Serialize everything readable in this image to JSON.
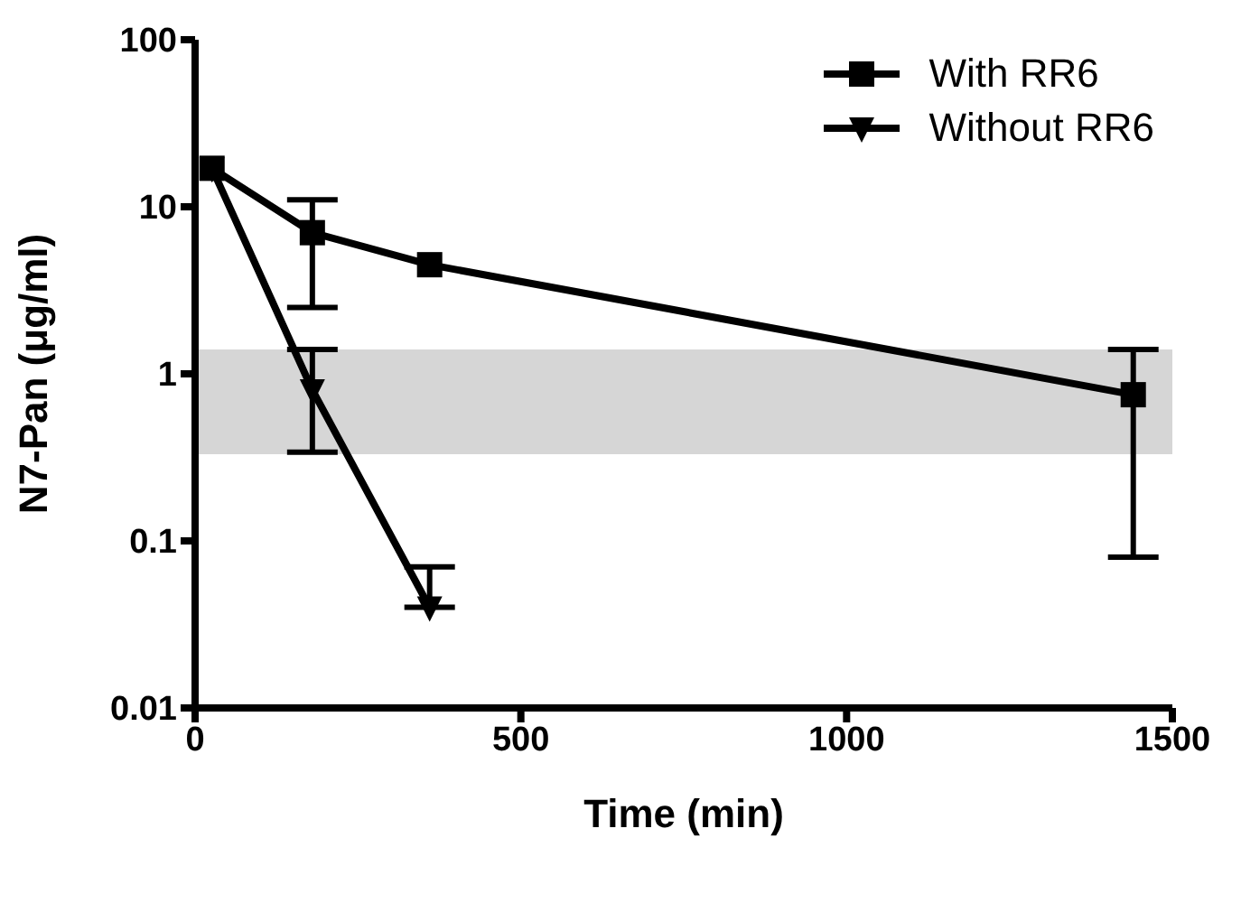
{
  "chart_data": {
    "type": "line",
    "xlabel": "Time (min)",
    "ylabel": "N7-Pan (μg/ml)",
    "log": "y",
    "xlim": [
      0,
      1500
    ],
    "xticks": [
      0,
      500,
      1000,
      1500
    ],
    "ylim": [
      0.01,
      100
    ],
    "yticks": [
      0.01,
      0.1,
      1,
      10,
      100
    ],
    "legend": "top right",
    "line_style": "solid",
    "series": [
      {
        "name": "With RR6",
        "color": "#000000",
        "marker": "square",
        "x": [
          26,
          180,
          360,
          1440
        ],
        "values": [
          17,
          7,
          4.5,
          0.75
        ],
        "errors": [
          null,
          [
            2.5,
            11
          ],
          null,
          [
            0.08,
            1.4
          ]
        ]
      },
      {
        "name": "Without RR6",
        "color": "#000000",
        "marker": "triangle",
        "x": [
          26,
          180,
          360
        ],
        "values": [
          17,
          0.8,
          0.04
        ],
        "errors": [
          null,
          [
            0.34,
            1.4
          ],
          [
            0.04,
            0.07
          ]
        ]
      }
    ],
    "bands": [
      {
        "axis": "y",
        "from": 0.33,
        "to": 1.4,
        "color": "#bbbbbb"
      }
    ]
  }
}
